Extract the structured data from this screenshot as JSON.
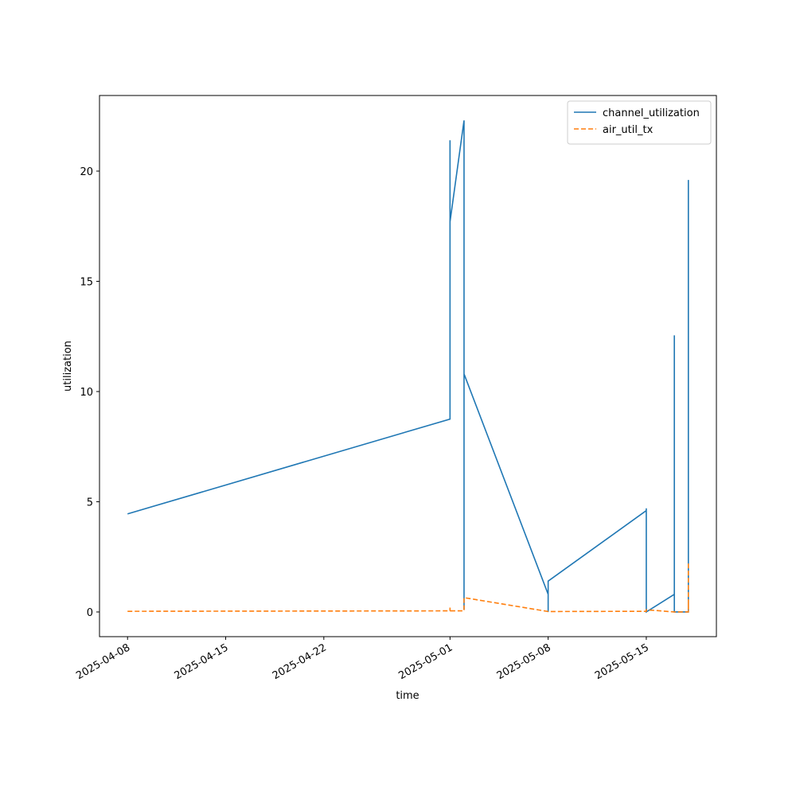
{
  "chart_data": {
    "type": "line",
    "x_label": "time",
    "y_label": "utilization",
    "xlim": [
      "2025-04-06",
      "2025-05-20"
    ],
    "ylim": [
      -1.12,
      23.43
    ],
    "xticks": [
      "2025-04-08",
      "2025-04-15",
      "2025-04-22",
      "2025-05-01",
      "2025-05-08",
      "2025-05-15"
    ],
    "yticks": [
      0,
      5,
      10,
      15,
      20
    ],
    "legend": "upper right",
    "grid": false,
    "series": [
      {
        "name": "channel_utilization",
        "color": "#1f77b4",
        "dash": "solid",
        "x": [
          "2025-04-08",
          "2025-05-01",
          "2025-05-01",
          "2025-05-01",
          "2025-05-02",
          "2025-05-02",
          "2025-05-02",
          "2025-05-02",
          "2025-05-02",
          "2025-05-08",
          "2025-05-08",
          "2025-05-08",
          "2025-05-15",
          "2025-05-15",
          "2025-05-15",
          "2025-05-15",
          "2025-05-15",
          "2025-05-17",
          "2025-05-17",
          "2025-05-17",
          "2025-05-18",
          "2025-05-18",
          "2025-05-18",
          "2025-05-18",
          "2025-05-18",
          "2025-05-18"
        ],
        "values": [
          4.45,
          8.75,
          21.4,
          17.7,
          22.3,
          0.1,
          7.5,
          3.1,
          10.8,
          0.8,
          0,
          1.4,
          4.6,
          2.8,
          4.7,
          1.7,
          0,
          0.8,
          12.55,
          0,
          0,
          6.5,
          0,
          6.4,
          0,
          19.6
        ]
      },
      {
        "name": "air_util_tx",
        "color": "#ff7f0e",
        "dash": "dashed",
        "x": [
          "2025-04-08",
          "2025-05-01",
          "2025-05-01",
          "2025-05-01",
          "2025-05-02",
          "2025-05-02",
          "2025-05-08",
          "2025-05-15",
          "2025-05-15",
          "2025-05-17",
          "2025-05-18",
          "2025-05-18",
          "2025-05-18",
          "2025-05-18",
          "2025-05-18"
        ],
        "values": [
          0.03,
          0.05,
          0.2,
          0.05,
          0.05,
          0.65,
          0.02,
          0.03,
          0.1,
          0,
          0,
          0.5,
          0.1,
          1.5,
          2.3
        ]
      }
    ]
  }
}
